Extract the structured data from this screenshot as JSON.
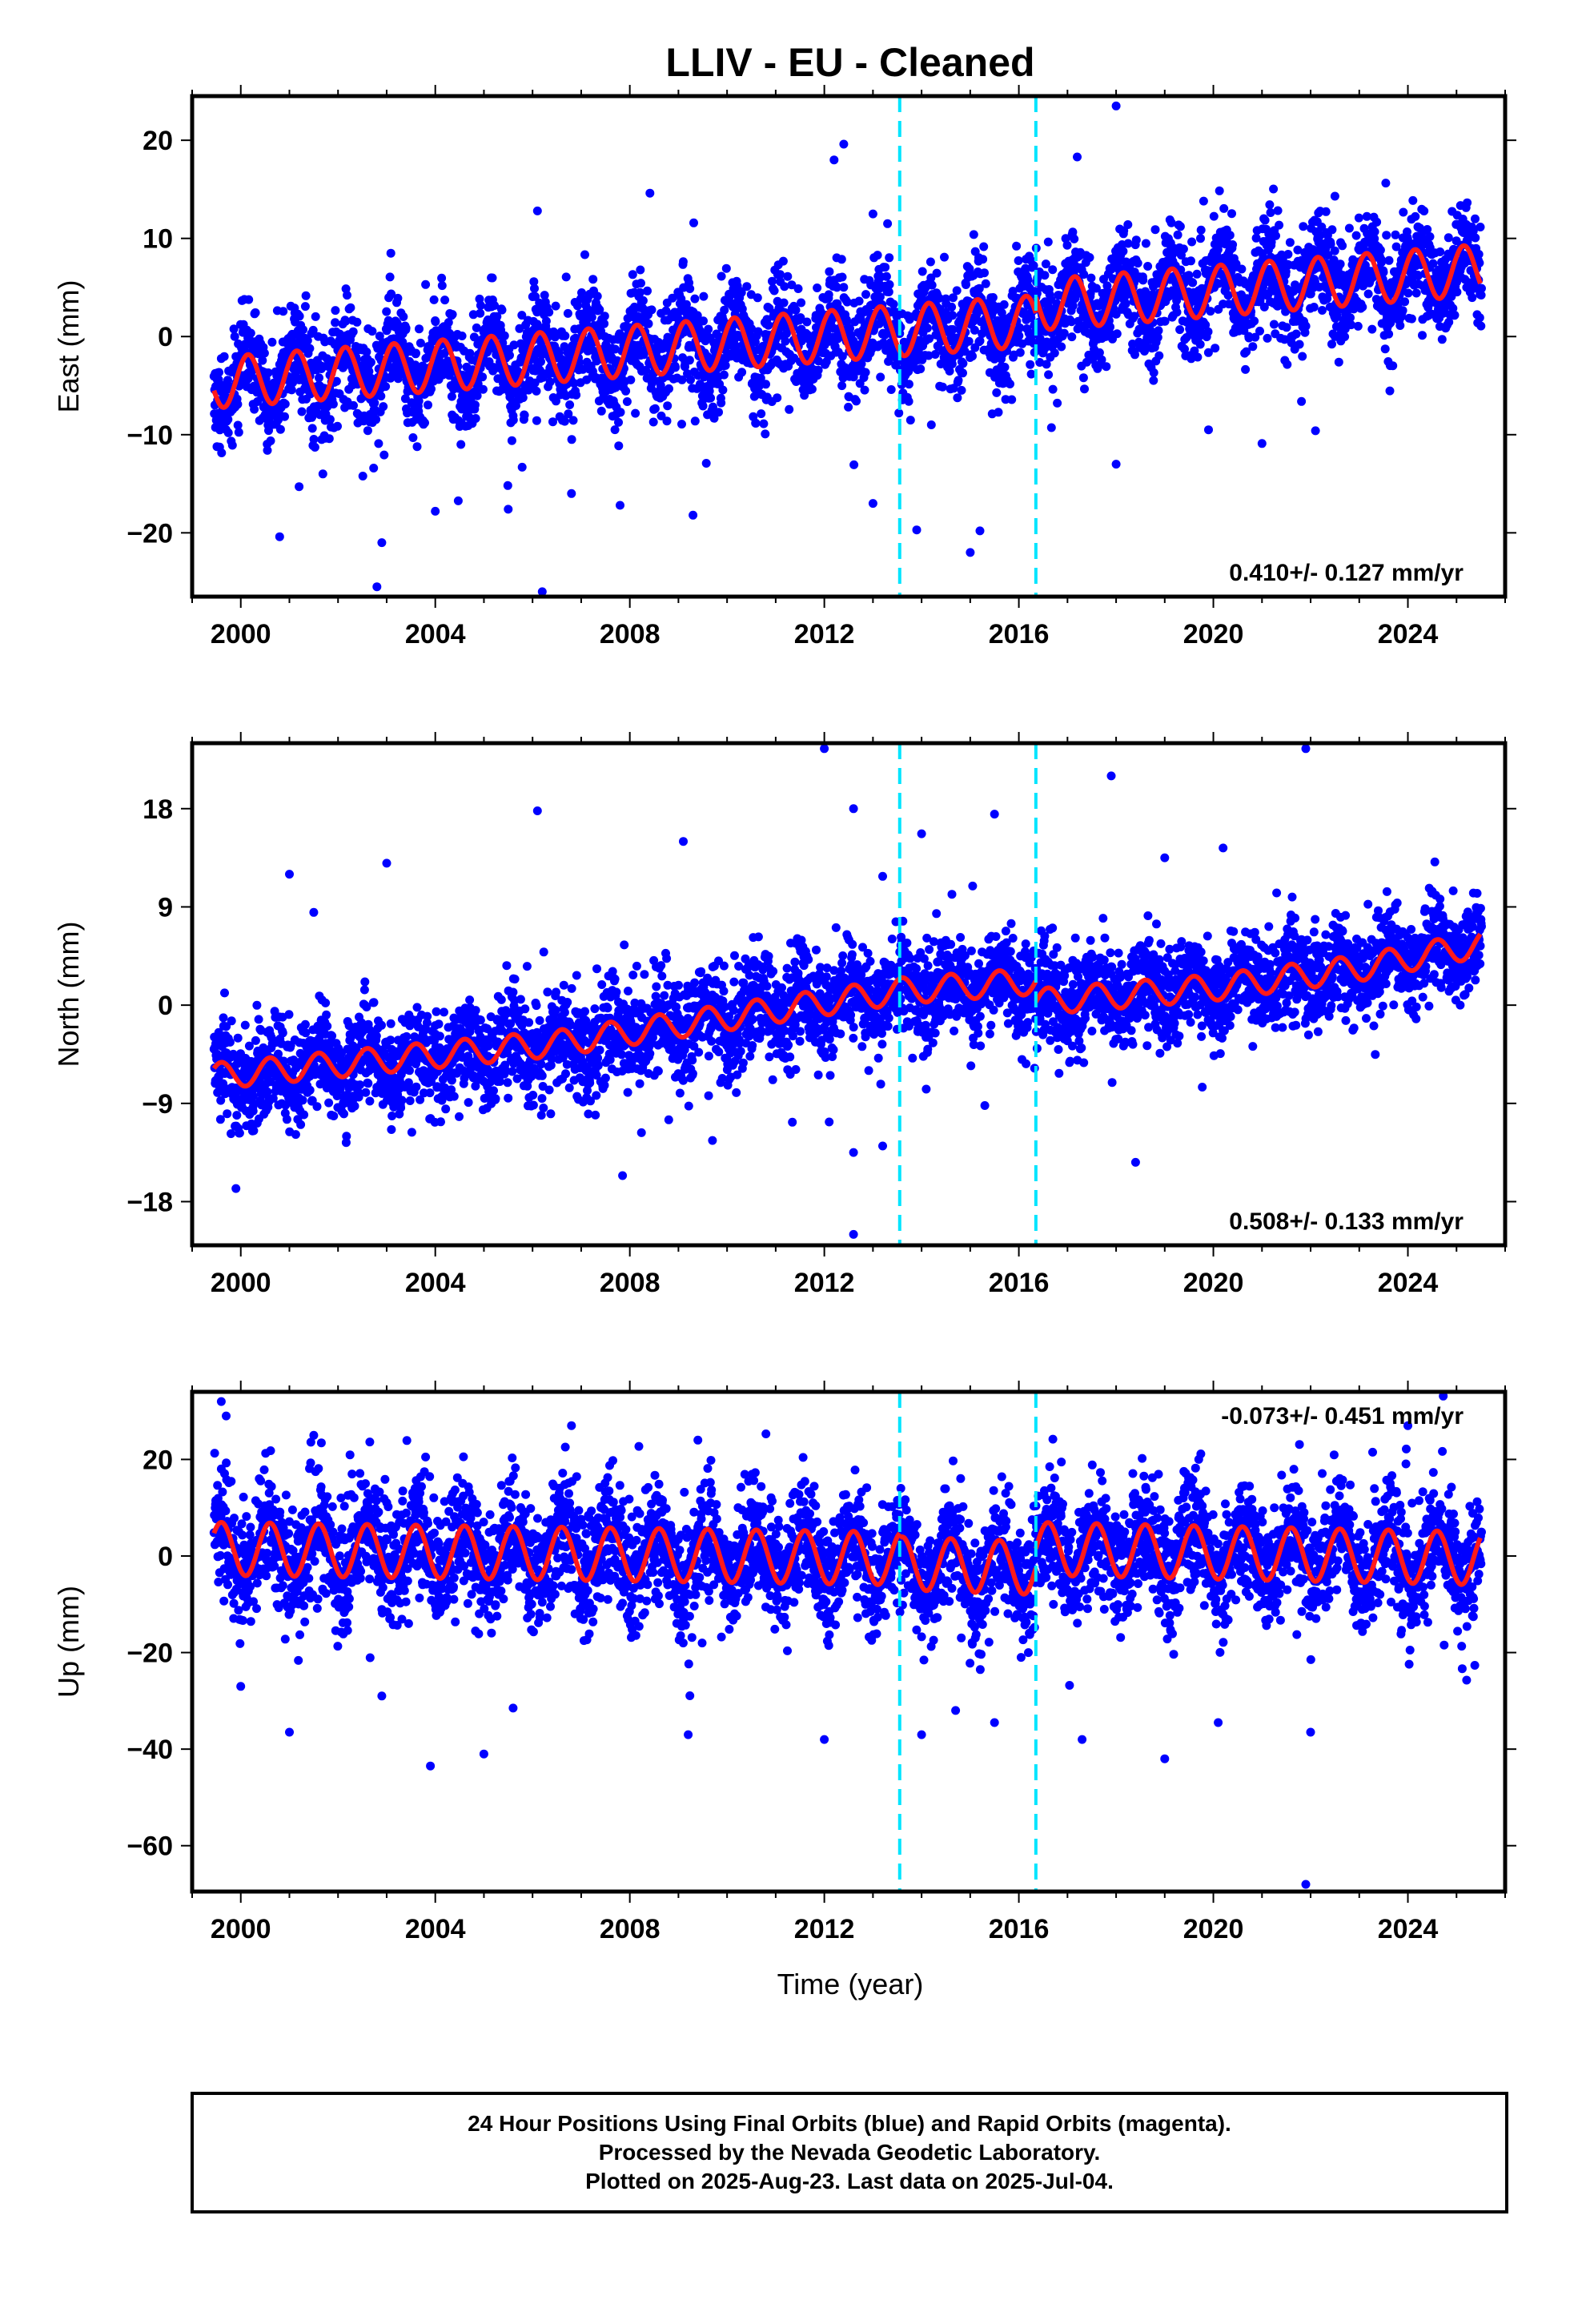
{
  "chart_data": {
    "title": "LLIV  - EU - Cleaned",
    "xlabel": "Time (year)",
    "xlim": [
      1999.0,
      2026.0
    ],
    "xticks": [
      2000,
      2004,
      2008,
      2012,
      2016,
      2020,
      2024
    ],
    "event_lines": [
      2013.55,
      2016.35
    ],
    "event_line_color": "#00e5ff",
    "point_color": "#0000ff",
    "model_color": "#ff1a1a",
    "panels": [
      {
        "type": "scatter",
        "ylabel": "East (mm)",
        "ylim": [
          -26.5,
          24.5
        ],
        "yticks": [
          -20,
          -10,
          0,
          10,
          20
        ],
        "rate_label": "0.410+/- 0.127 mm/yr",
        "rate_position": "bottom-right",
        "model": {
          "segments": [
            {
              "t_start": 1999.45,
              "t_end": 2013.55,
              "offset_points": [
                [
                  1999.45,
                  -4.7
                ],
                [
                  2013.55,
                  0.6
                ]
              ]
            },
            {
              "t_start": 2013.55,
              "t_end": 2016.35,
              "offset_points": [
                [
                  2013.55,
                  0.6
                ],
                [
                  2016.35,
                  1.6
                ]
              ]
            },
            {
              "t_start": 2016.35,
              "t_end": 2025.5,
              "offset_points": [
                [
                  2016.35,
                  3.2
                ],
                [
                  2025.5,
                  6.8
                ]
              ]
            }
          ],
          "amplitude": 2.6,
          "phase_peak": 0.15
        },
        "scatter_sigma": 2.6,
        "outliers": [
          [
            2012.2,
            18.0
          ],
          [
            2012.4,
            19.6
          ],
          [
            2013.0,
            12.5
          ],
          [
            2018.0,
            23.5
          ],
          [
            2017.2,
            18.3
          ],
          [
            2006.1,
            12.8
          ],
          [
            2013.3,
            11.5
          ],
          [
            2022.5,
            14.3
          ],
          [
            2019.8,
            13.8
          ],
          [
            2002.9,
            -21.0
          ],
          [
            2002.8,
            -25.5
          ],
          [
            2006.2,
            -26.0
          ],
          [
            2000.8,
            -20.4
          ],
          [
            2013.0,
            -17.0
          ],
          [
            2013.9,
            -19.7
          ],
          [
            2015.2,
            -19.8
          ],
          [
            2015.0,
            -22.0
          ],
          [
            2004.0,
            -17.8
          ],
          [
            2005.5,
            -17.6
          ],
          [
            2007.8,
            -17.2
          ],
          [
            2009.3,
            -18.2
          ],
          [
            2018.0,
            -13.0
          ],
          [
            2019.9,
            -9.5
          ],
          [
            2021.0,
            -10.9
          ],
          [
            2022.1,
            -9.6
          ],
          [
            2003.8,
            5.3
          ],
          [
            2001.2,
            -15.3
          ],
          [
            2006.8,
            -16.0
          ],
          [
            2014.2,
            -9.0
          ]
        ]
      },
      {
        "type": "scatter",
        "ylabel": "North (mm)",
        "ylim": [
          -22.0,
          24.0
        ],
        "yticks": [
          -18,
          -9,
          0,
          9,
          18
        ],
        "rate_label": "0.508+/- 0.133 mm/yr",
        "rate_position": "bottom-right",
        "model": {
          "segments": [
            {
              "t_start": 1999.45,
              "t_end": 2016.35,
              "offset_points": [
                [
                  1999.45,
                  -6.5
                ],
                [
                  2006.5,
                  -3.5
                ],
                [
                  2013.55,
                  1.3
                ],
                [
                  2016.35,
                  2.2
                ]
              ]
            },
            {
              "t_start": 2016.35,
              "t_end": 2025.5,
              "offset_points": [
                [
                  2016.35,
                  0.3
                ],
                [
                  2020.0,
                  1.6
                ],
                [
                  2023.0,
                  3.4
                ],
                [
                  2025.5,
                  5.6
                ]
              ]
            }
          ],
          "amplitude": 1.2,
          "phase_peak": 0.6
        },
        "scatter_sigma": 2.2,
        "outliers": [
          [
            2012.0,
            23.5
          ],
          [
            2012.6,
            18.0
          ],
          [
            2006.1,
            17.8
          ],
          [
            2015.5,
            17.5
          ],
          [
            2017.9,
            21.0
          ],
          [
            2021.9,
            23.5
          ],
          [
            2014.0,
            15.7
          ],
          [
            2013.2,
            11.8
          ],
          [
            2009.1,
            15.0
          ],
          [
            2003.0,
            13.0
          ],
          [
            2001.0,
            12.0
          ],
          [
            2019.0,
            13.5
          ],
          [
            2020.2,
            14.4
          ],
          [
            1999.9,
            -16.8
          ],
          [
            2012.6,
            -13.5
          ],
          [
            2012.1,
            -10.7
          ],
          [
            2013.2,
            -12.9
          ],
          [
            2012.6,
            -21.0
          ],
          [
            2018.4,
            -14.4
          ],
          [
            2009.7,
            -12.4
          ],
          [
            2008.8,
            -10.5
          ],
          [
            2015.3,
            -9.2
          ],
          [
            2001.5,
            8.5
          ]
        ]
      },
      {
        "type": "scatter",
        "ylabel": "Up (mm)",
        "ylim": [
          -69.5,
          34.0
        ],
        "yticks": [
          -60,
          -40,
          -20,
          0,
          20
        ],
        "rate_label": "-0.073+/- 0.451 mm/yr",
        "rate_position": "top-right",
        "model": {
          "segments": [
            {
              "t_start": 1999.45,
              "t_end": 2013.55,
              "offset_points": [
                [
                  1999.45,
                  1.5
                ],
                [
                  2013.55,
                  -0.5
                ]
              ]
            },
            {
              "t_start": 2013.55,
              "t_end": 2016.35,
              "offset_points": [
                [
                  2013.55,
                  -1.5
                ],
                [
                  2016.35,
                  -2.5
                ]
              ]
            },
            {
              "t_start": 2016.35,
              "t_end": 2025.5,
              "offset_points": [
                [
                  2016.35,
                  1.5
                ],
                [
                  2025.5,
                  -0.5
                ]
              ]
            }
          ],
          "amplitude": 5.5,
          "phase_peak": 0.6
        },
        "scatter_sigma": 6.0,
        "outliers": [
          [
            2021.9,
            -68.0
          ],
          [
            2003.9,
            -43.5
          ],
          [
            2005.0,
            -41.0
          ],
          [
            2009.2,
            -37.0
          ],
          [
            2001.0,
            -36.5
          ],
          [
            2014.0,
            -37.0
          ],
          [
            2019.0,
            -42.0
          ],
          [
            2020.1,
            -34.5
          ],
          [
            2022.0,
            -36.5
          ],
          [
            2005.6,
            -31.5
          ],
          [
            2014.7,
            -32.0
          ],
          [
            2015.5,
            -34.5
          ],
          [
            2017.3,
            -38.0
          ],
          [
            2002.9,
            -29.0
          ],
          [
            2012.0,
            -38.0
          ],
          [
            1999.6,
            32.0
          ],
          [
            1999.7,
            29.0
          ],
          [
            2024.0,
            27.0
          ],
          [
            2006.8,
            27.0
          ],
          [
            2010.8,
            25.3
          ],
          [
            2016.7,
            24.2
          ],
          [
            2019.7,
            20.0
          ],
          [
            2003.8,
            20.5
          ],
          [
            2001.5,
            25.0
          ],
          [
            2009.4,
            24.0
          ],
          [
            2000.0,
            -27.0
          ]
        ]
      }
    ]
  },
  "footer": {
    "line1": "24 Hour Positions Using Final Orbits (blue) and Rapid Orbits (magenta).",
    "line2": "Processed by the Nevada Geodetic Laboratory.",
    "line3": "Plotted on 2025-Aug-23. Last data on 2025-Jul-04."
  }
}
